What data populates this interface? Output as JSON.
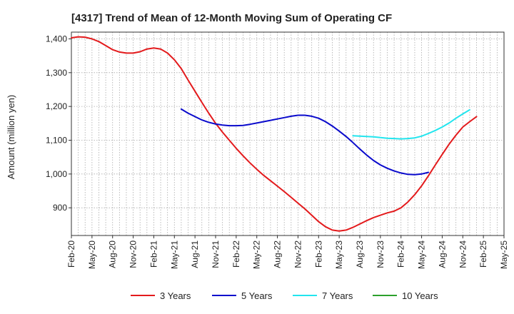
{
  "chart_data": {
    "type": "line",
    "title": "[4317]  Trend of Mean of 12-Month Moving Sum of Operating CF",
    "xlabel": "",
    "ylabel": "Amount (million yen)",
    "ylim": [
      818,
      1420
    ],
    "yticks": [
      900,
      1000,
      1100,
      1200,
      1300,
      1400
    ],
    "ytick_labels": [
      "900",
      "1,000",
      "1,100",
      "1,200",
      "1,300",
      "1,400"
    ],
    "x_start": "Feb-20",
    "x_months_span": 63,
    "xtick_labels": [
      "Feb-20",
      "May-20",
      "Aug-20",
      "Nov-20",
      "Feb-21",
      "May-21",
      "Aug-21",
      "Nov-21",
      "Feb-22",
      "May-22",
      "Aug-22",
      "Nov-22",
      "Feb-23",
      "May-23",
      "Aug-23",
      "Nov-23",
      "Feb-24",
      "May-24",
      "Aug-24",
      "Nov-24",
      "Feb-25",
      "May-25"
    ],
    "grid": true,
    "legend_position": "bottom",
    "series": [
      {
        "name": "3 Years",
        "color": "#e31a1c",
        "start_index": 0,
        "values": [
          1403,
          1406,
          1405,
          1400,
          1392,
          1380,
          1368,
          1361,
          1358,
          1358,
          1362,
          1370,
          1373,
          1370,
          1358,
          1338,
          1312,
          1278,
          1245,
          1212,
          1180,
          1150,
          1124,
          1100,
          1076,
          1054,
          1033,
          1014,
          996,
          980,
          964,
          948,
          931,
          914,
          897,
          878,
          859,
          844,
          834,
          831,
          834,
          842,
          852,
          862,
          871,
          878,
          885,
          890,
          900,
          917,
          939,
          965,
          995,
          1027,
          1058,
          1088,
          1115,
          1139,
          1155,
          1170
        ]
      },
      {
        "name": "5 Years",
        "color": "#0a0acc",
        "start_index": 16,
        "values": [
          1192,
          1180,
          1170,
          1160,
          1153,
          1148,
          1145,
          1143,
          1143,
          1144,
          1147,
          1151,
          1155,
          1159,
          1163,
          1167,
          1171,
          1174,
          1174,
          1171,
          1165,
          1155,
          1142,
          1127,
          1111,
          1093,
          1074,
          1056,
          1040,
          1027,
          1017,
          1009,
          1003,
          999,
          998,
          1000,
          1005
        ]
      },
      {
        "name": "7 Years",
        "color": "#22e5ee",
        "start_index": 41,
        "values": [
          1113,
          1112,
          1111,
          1110,
          1108,
          1106,
          1105,
          1104,
          1105,
          1107,
          1112,
          1120,
          1129,
          1139,
          1151,
          1165,
          1178,
          1190
        ]
      },
      {
        "name": "10 Years",
        "color": "#2ca02c",
        "start_index": 0,
        "values": []
      }
    ]
  }
}
